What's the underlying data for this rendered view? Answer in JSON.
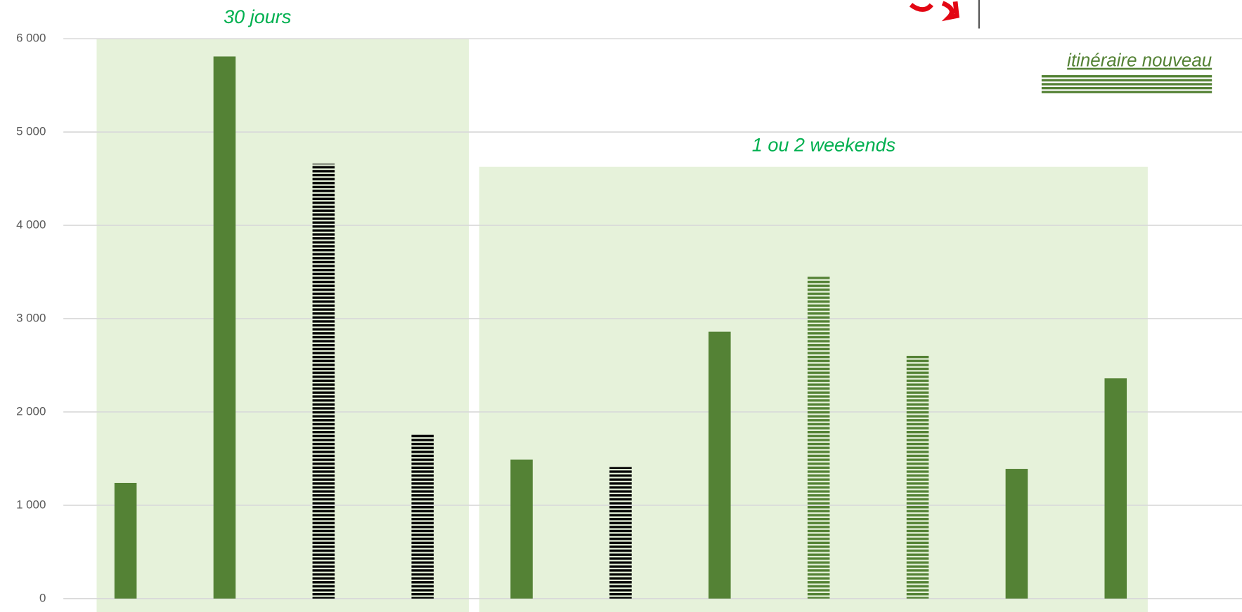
{
  "chart_data": {
    "type": "bar",
    "categories": [
      null,
      null,
      null,
      null,
      null,
      null,
      null,
      null,
      null,
      null,
      null
    ],
    "values": [
      1240,
      5810,
      4660,
      1760,
      1490,
      1410,
      2860,
      3450,
      2610,
      1390,
      2360
    ],
    "colors": [
      "#548235",
      "#548235",
      "#000000",
      "#000000",
      "#548235",
      "#000000",
      "#548235",
      "#548235",
      "#548235",
      "#548235",
      "#548235"
    ],
    "patterns": [
      "solid",
      "solid",
      "stripes",
      "stripes",
      "solid",
      "stripes",
      "solid",
      "stripes",
      "stripes",
      "solid",
      "solid"
    ],
    "ylim": [
      0,
      6000
    ],
    "yticks": [
      0,
      {
        "value": 1000,
        "label": "1 000"
      },
      {
        "value": 2000,
        "label": "2 000"
      },
      {
        "value": 3000,
        "label": "3 000"
      },
      {
        "value": 4000,
        "label": "4 000"
      },
      {
        "value": 5000,
        "label": "5 000"
      },
      {
        "value": 6000,
        "label": "6 000"
      }
    ],
    "grid": true,
    "annotations": [
      "30 jours",
      "1 ou 2 weekends"
    ],
    "legend": {
      "label": "itinéraire nouveau",
      "color": "#548235",
      "pattern": "stripes"
    }
  }
}
